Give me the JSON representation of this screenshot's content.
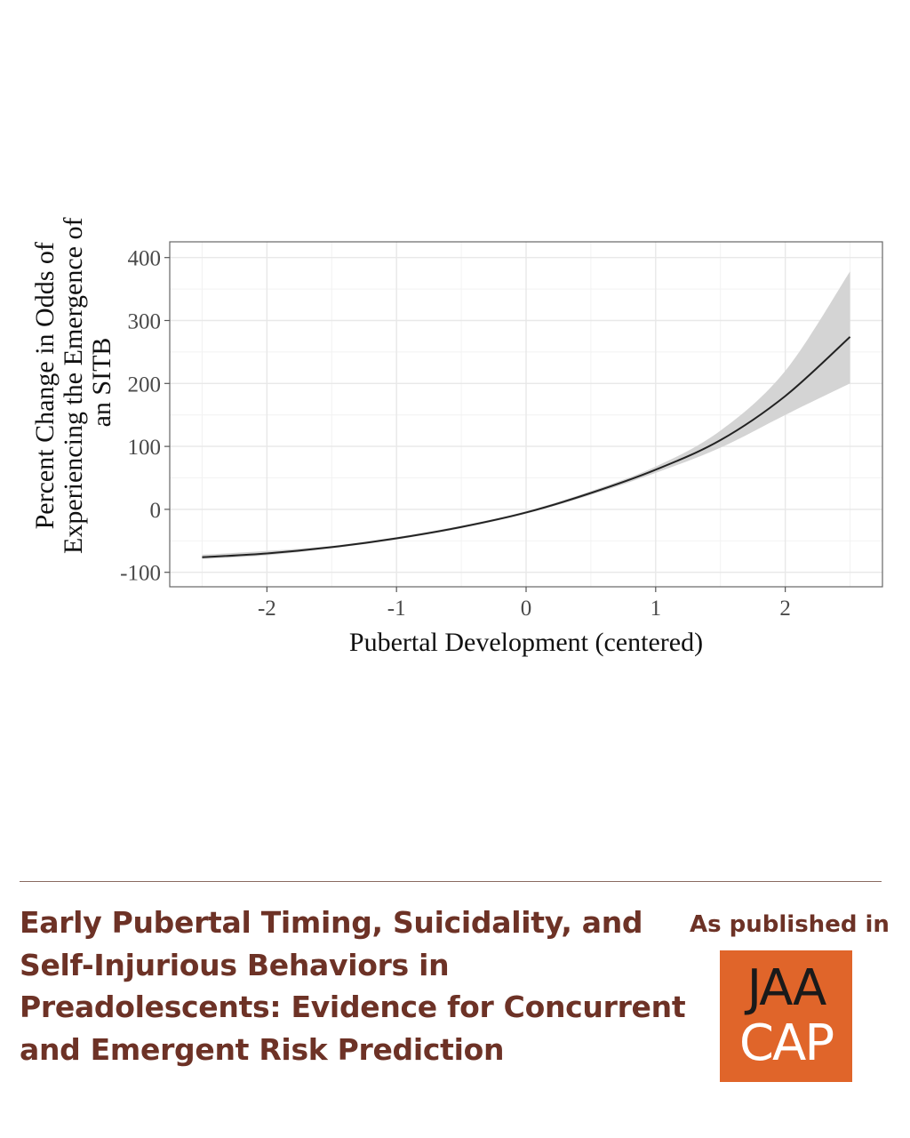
{
  "chart_data": {
    "type": "line",
    "xlabel": "Pubertal Development (centered)",
    "ylabel_lines": [
      "Percent Change in Odds of",
      "Experiencing the Emergence of",
      "an SITB"
    ],
    "xlim": [
      -2.75,
      2.75
    ],
    "ylim": [
      -123,
      425
    ],
    "x_ticks": [
      -2,
      -1,
      0,
      1,
      2
    ],
    "x_tick_labels": [
      "-2",
      "-1",
      "0",
      "1",
      "2"
    ],
    "y_ticks": [
      -100,
      0,
      100,
      200,
      300,
      400
    ],
    "y_tick_labels": [
      "-100",
      "0",
      "100",
      "200",
      "300",
      "400"
    ],
    "grid": true,
    "series": [
      {
        "x": [
          -2.5,
          -2.0,
          -1.5,
          -1.0,
          -0.5,
          0.0,
          0.5,
          1.0,
          1.5,
          2.0,
          2.5
        ],
        "y": [
          -76,
          -70,
          -60,
          -46,
          -28,
          -5,
          26,
          63,
          110,
          180,
          274
        ],
        "lower": [
          -79,
          -73,
          -62,
          -48,
          -30,
          -7,
          23,
          58,
          98,
          150,
          200
        ],
        "upper": [
          -72,
          -66,
          -58,
          -44,
          -26,
          -3,
          29,
          68,
          125,
          220,
          378
        ]
      }
    ]
  },
  "footer": {
    "title": "Early Pubertal Timing, Suicidality, and Self-Injurious Behaviors in Preadolescents: Evidence for Concurrent and Emergent Risk Prediction",
    "published_label": "As published in",
    "logo_line_1": "JAA",
    "logo_line_2": "CAP"
  },
  "colors": {
    "line": "#222222",
    "band": "#d4d4d4",
    "grid": "#e8e8e8",
    "title": "#6d3226",
    "logo_bg": "#e0652a"
  }
}
